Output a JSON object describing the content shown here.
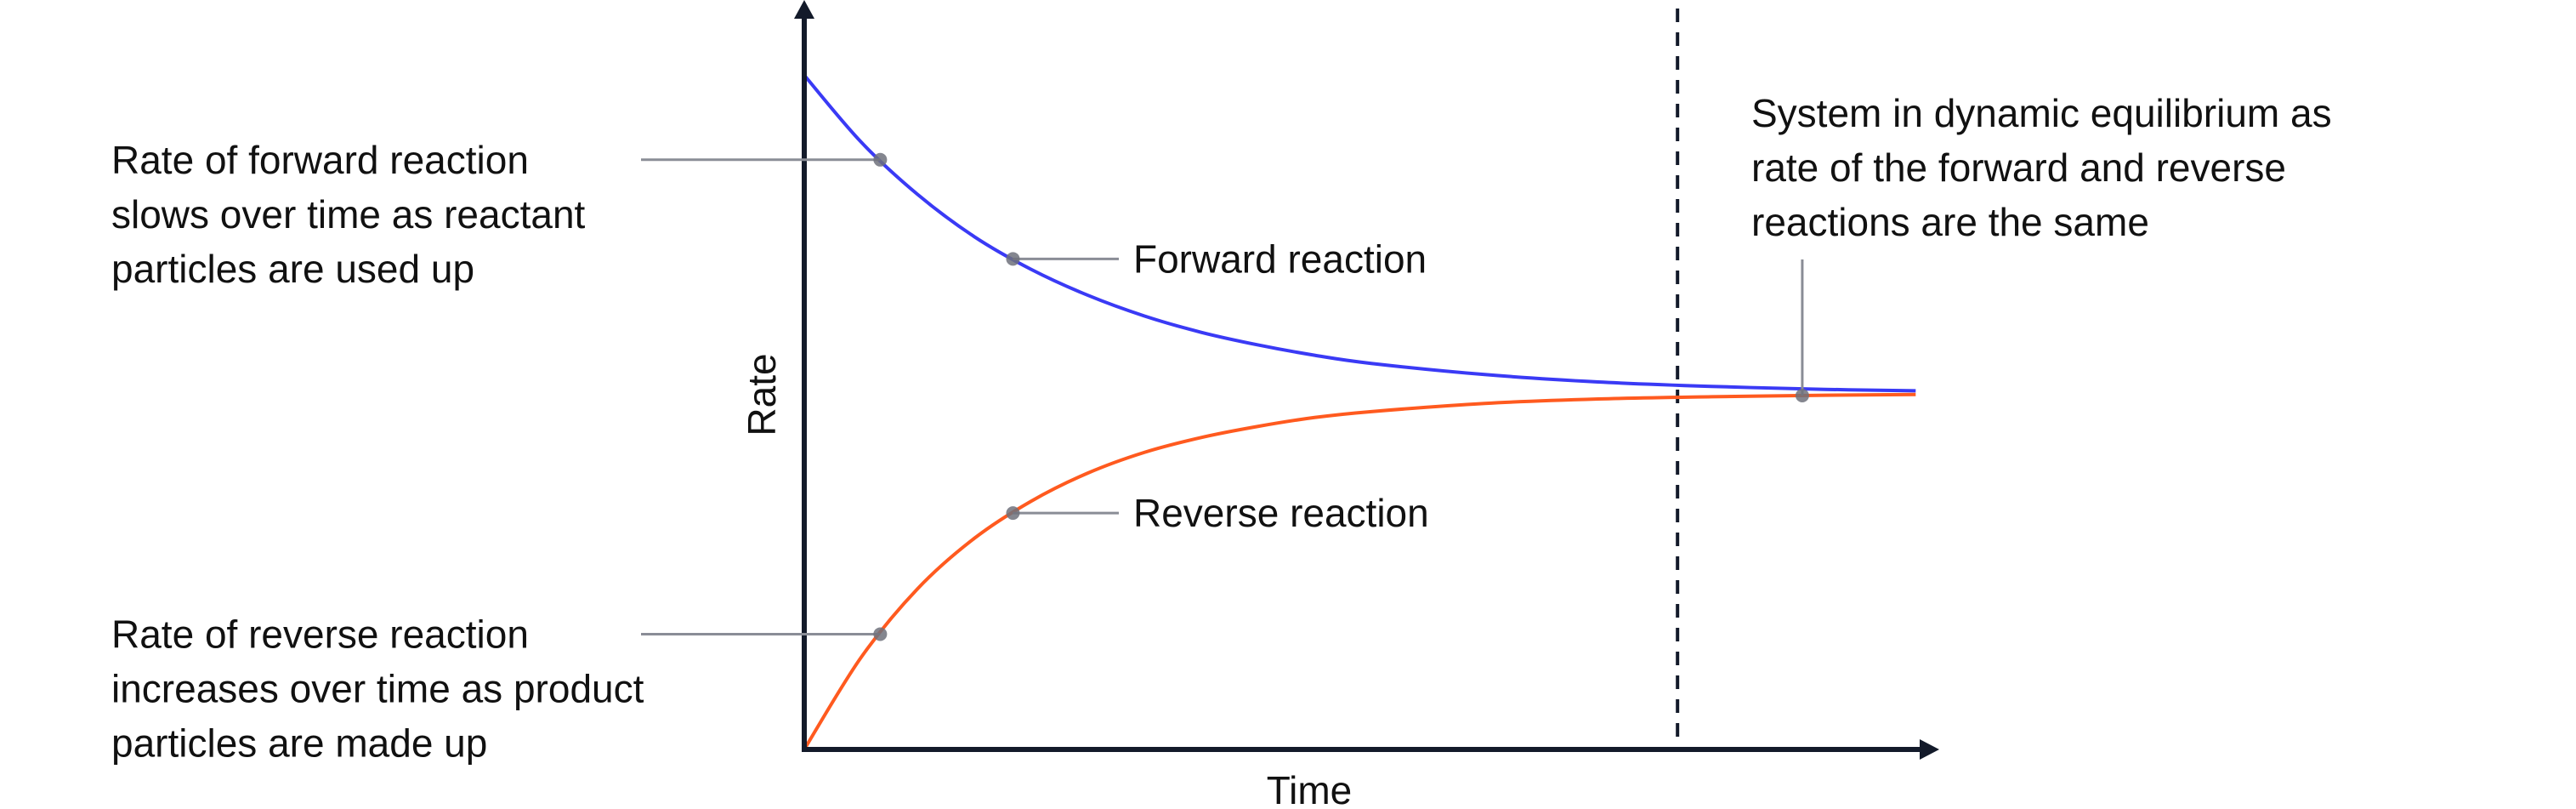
{
  "chart_data": {
    "type": "line",
    "xlabel": "Time",
    "ylabel": "Rate",
    "xlim": [
      0,
      100
    ],
    "ylim": [
      0,
      100
    ],
    "grid": false,
    "ticks": false,
    "colors": {
      "axis": "#131a2a",
      "forward": "#3a3af5",
      "reverse": "#ff5a1f",
      "leader": "#8a8d96"
    },
    "equilibrium_time": 77,
    "series": [
      {
        "name": "Forward reaction",
        "color": "#3a3af5",
        "x": [
          0,
          5,
          10,
          15,
          20,
          25,
          30,
          35,
          40,
          45,
          50,
          60,
          70,
          80,
          90,
          98
        ],
        "y": [
          91,
          82.0,
          74.9,
          69.2,
          64.8,
          61.3,
          58.5,
          56.3,
          54.6,
          53.2,
          52.1,
          50.6,
          49.6,
          49.0,
          48.6,
          48.4
        ]
      },
      {
        "name": "Reverse reaction",
        "color": "#ff5a1f",
        "x": [
          0,
          5,
          10,
          15,
          20,
          25,
          30,
          35,
          40,
          45,
          50,
          60,
          70,
          80,
          90,
          98
        ],
        "y": [
          0,
          12.4,
          21.7,
          28.5,
          33.5,
          37.3,
          40.1,
          42.1,
          43.6,
          44.8,
          45.6,
          46.7,
          47.3,
          47.6,
          47.8,
          47.9
        ]
      }
    ],
    "annotations": [
      {
        "series": 0,
        "t": 6.7,
        "side": "left",
        "lines": [
          "Rate of forward reaction",
          "slows over time as reactant",
          "particles are used up"
        ]
      },
      {
        "series": 0,
        "t": 18.4,
        "side": "right",
        "lines": [
          "Forward reaction"
        ]
      },
      {
        "series": 1,
        "t": 18.4,
        "side": "right",
        "lines": [
          "Reverse reaction"
        ]
      },
      {
        "series": 1,
        "t": 6.7,
        "side": "left",
        "lines": [
          "Rate of reverse reaction",
          "increases over time as product",
          "particles are made up"
        ]
      },
      {
        "series": 1,
        "t": 88,
        "side": "top",
        "lines": [
          "System in dynamic equilibrium as",
          "rate of the forward and reverse",
          "reactions are the same"
        ]
      }
    ]
  }
}
